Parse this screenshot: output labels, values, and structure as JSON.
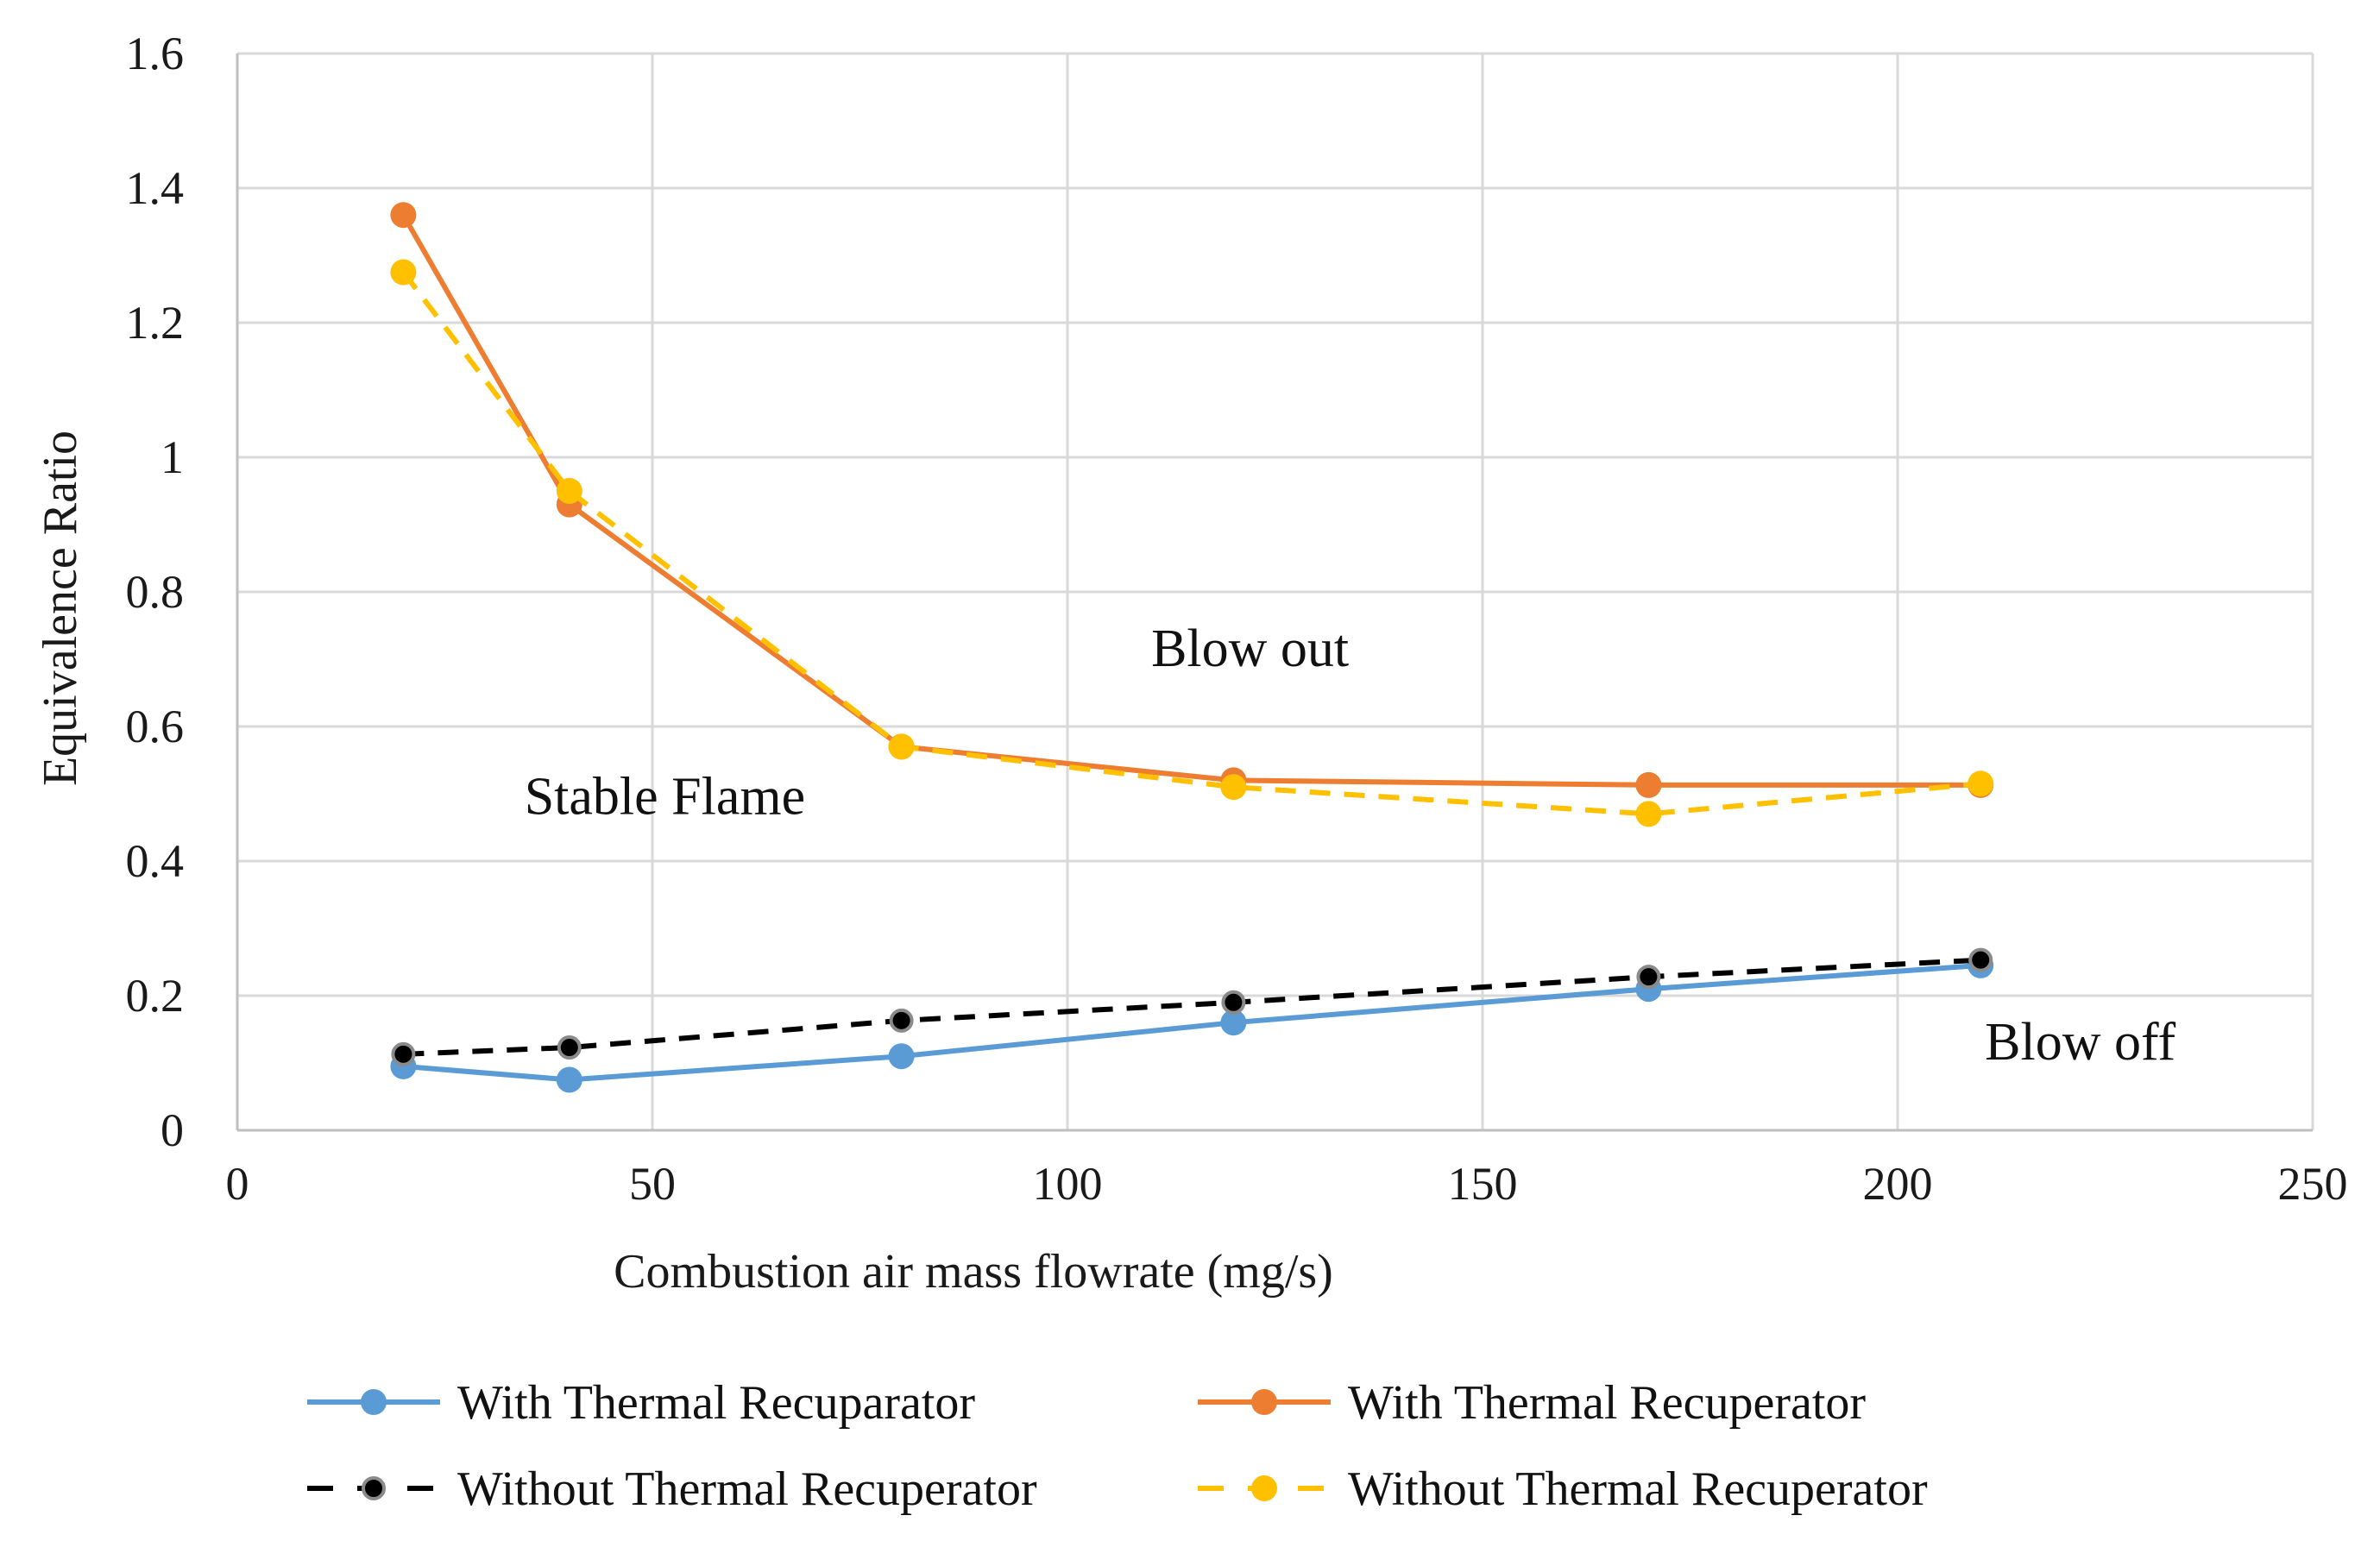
{
  "chart_data": {
    "type": "line",
    "xlabel": "Combustion air mass flowrate (mg/s)",
    "ylabel": "Equivalence Ratio",
    "xlim": [
      0,
      250
    ],
    "ylim": [
      0,
      1.6
    ],
    "x_ticks": [
      0,
      50,
      100,
      150,
      200,
      250
    ],
    "y_ticks": [
      0,
      0.2,
      0.4,
      0.6,
      0.8,
      1,
      1.2,
      1.4,
      1.6
    ],
    "x_tick_labels": [
      "0",
      "50",
      "100",
      "150",
      "200",
      "250"
    ],
    "y_tick_labels": [
      "0",
      "0.2",
      "0.4",
      "0.6",
      "0.8",
      "1",
      "1.2",
      "1.4",
      "1.6"
    ],
    "grid": true,
    "legend_position": "bottom",
    "annotations": [
      {
        "id": "stable",
        "text": "Stable Flame",
        "x": 51.5,
        "y": 0.47
      },
      {
        "id": "blowout",
        "text": "Blow out",
        "x": 122,
        "y": 0.69
      },
      {
        "id": "blowoff",
        "text": "Blow off",
        "x": 222,
        "y": 0.105
      }
    ],
    "series": [
      {
        "id": "blue",
        "name": "With Thermal Recuparator",
        "color": "#5b9bd5",
        "dash": "solid",
        "marker_color": "#5b9bd5",
        "x": [
          20,
          40,
          80,
          120,
          170,
          210
        ],
        "y": [
          0.095,
          0.075,
          0.11,
          0.16,
          0.21,
          0.245
        ]
      },
      {
        "id": "orange",
        "name": "With Thermal Recuperator",
        "color": "#ed7d31",
        "dash": "solid",
        "marker_color": "#ed7d31",
        "x": [
          20,
          40,
          80,
          120,
          170,
          210
        ],
        "y": [
          1.36,
          0.93,
          0.57,
          0.52,
          0.513,
          0.513
        ]
      },
      {
        "id": "black",
        "name": "Without Thermal Recuperator",
        "color": "#000000",
        "dash": "dashed",
        "marker_color": "#000000",
        "x": [
          20,
          40,
          80,
          120,
          170,
          210
        ],
        "y": [
          0.113,
          0.123,
          0.163,
          0.19,
          0.228,
          0.253
        ]
      },
      {
        "id": "yellow",
        "name": "Without Thermal Recuperator",
        "color": "#ffc000",
        "dash": "dashed",
        "marker_color": "#ffc000",
        "x": [
          20,
          40,
          80,
          120,
          170,
          210
        ],
        "y": [
          1.275,
          0.95,
          0.57,
          0.51,
          0.47,
          0.515
        ]
      }
    ]
  }
}
